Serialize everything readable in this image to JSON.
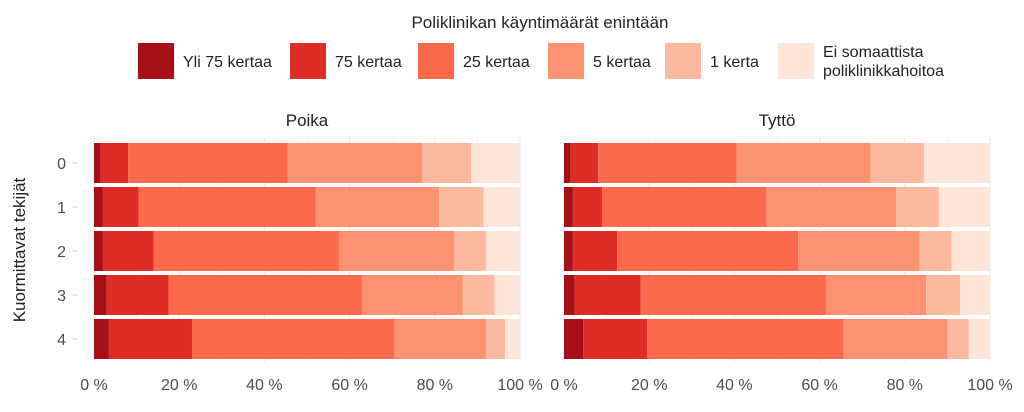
{
  "chart_data": {
    "type": "bar",
    "orientation": "horizontal",
    "stacked": true,
    "normalized": true,
    "legend": {
      "title": "Poliklinikan käyntimäärät enintään",
      "placement": "top",
      "entries": [
        {
          "label": "Yli 75 kertaa",
          "color": "#a50f15"
        },
        {
          "label": "75 kertaa",
          "color": "#de2d26"
        },
        {
          "label": "25 kertaa",
          "color": "#fb6a4a"
        },
        {
          "label": "5 kertaa",
          "color": "#fc9272"
        },
        {
          "label": "1 kerta",
          "color": "#fcbba1"
        },
        {
          "label": "Ei somaattista poliklinikkahoitoa",
          "color": "#fee5d9"
        }
      ]
    },
    "ylabel": "Kuormittavat tekijät",
    "categories": [
      "0",
      "1",
      "2",
      "3",
      "4"
    ],
    "xlim": [
      0,
      100
    ],
    "xticks": [
      "0 %",
      "20 %",
      "40 %",
      "60 %",
      "80 %",
      "100 %"
    ],
    "grid": true,
    "facets": [
      {
        "title": "Poika",
        "rows": [
          [
            1.5,
            6.5,
            37.5,
            31.5,
            11.5,
            11.5
          ],
          [
            2,
            8.5,
            41.5,
            29,
            10.5,
            8.5
          ],
          [
            2,
            12,
            43.5,
            27,
            7.5,
            8
          ],
          [
            3,
            14.5,
            45.5,
            23.5,
            7.5,
            6
          ],
          [
            3.5,
            19.5,
            47.5,
            21.5,
            4.5,
            3.5
          ]
        ]
      },
      {
        "title": "Tyttö",
        "rows": [
          [
            1.5,
            6.5,
            32.5,
            31.5,
            12.5,
            15.5
          ],
          [
            2,
            7,
            38.5,
            30.5,
            10,
            12
          ],
          [
            2,
            10.5,
            42.5,
            28.5,
            7.5,
            9
          ],
          [
            2.5,
            15.5,
            43.5,
            23.5,
            8,
            7
          ],
          [
            4.5,
            15,
            46,
            24.5,
            5,
            5
          ]
        ]
      }
    ]
  }
}
